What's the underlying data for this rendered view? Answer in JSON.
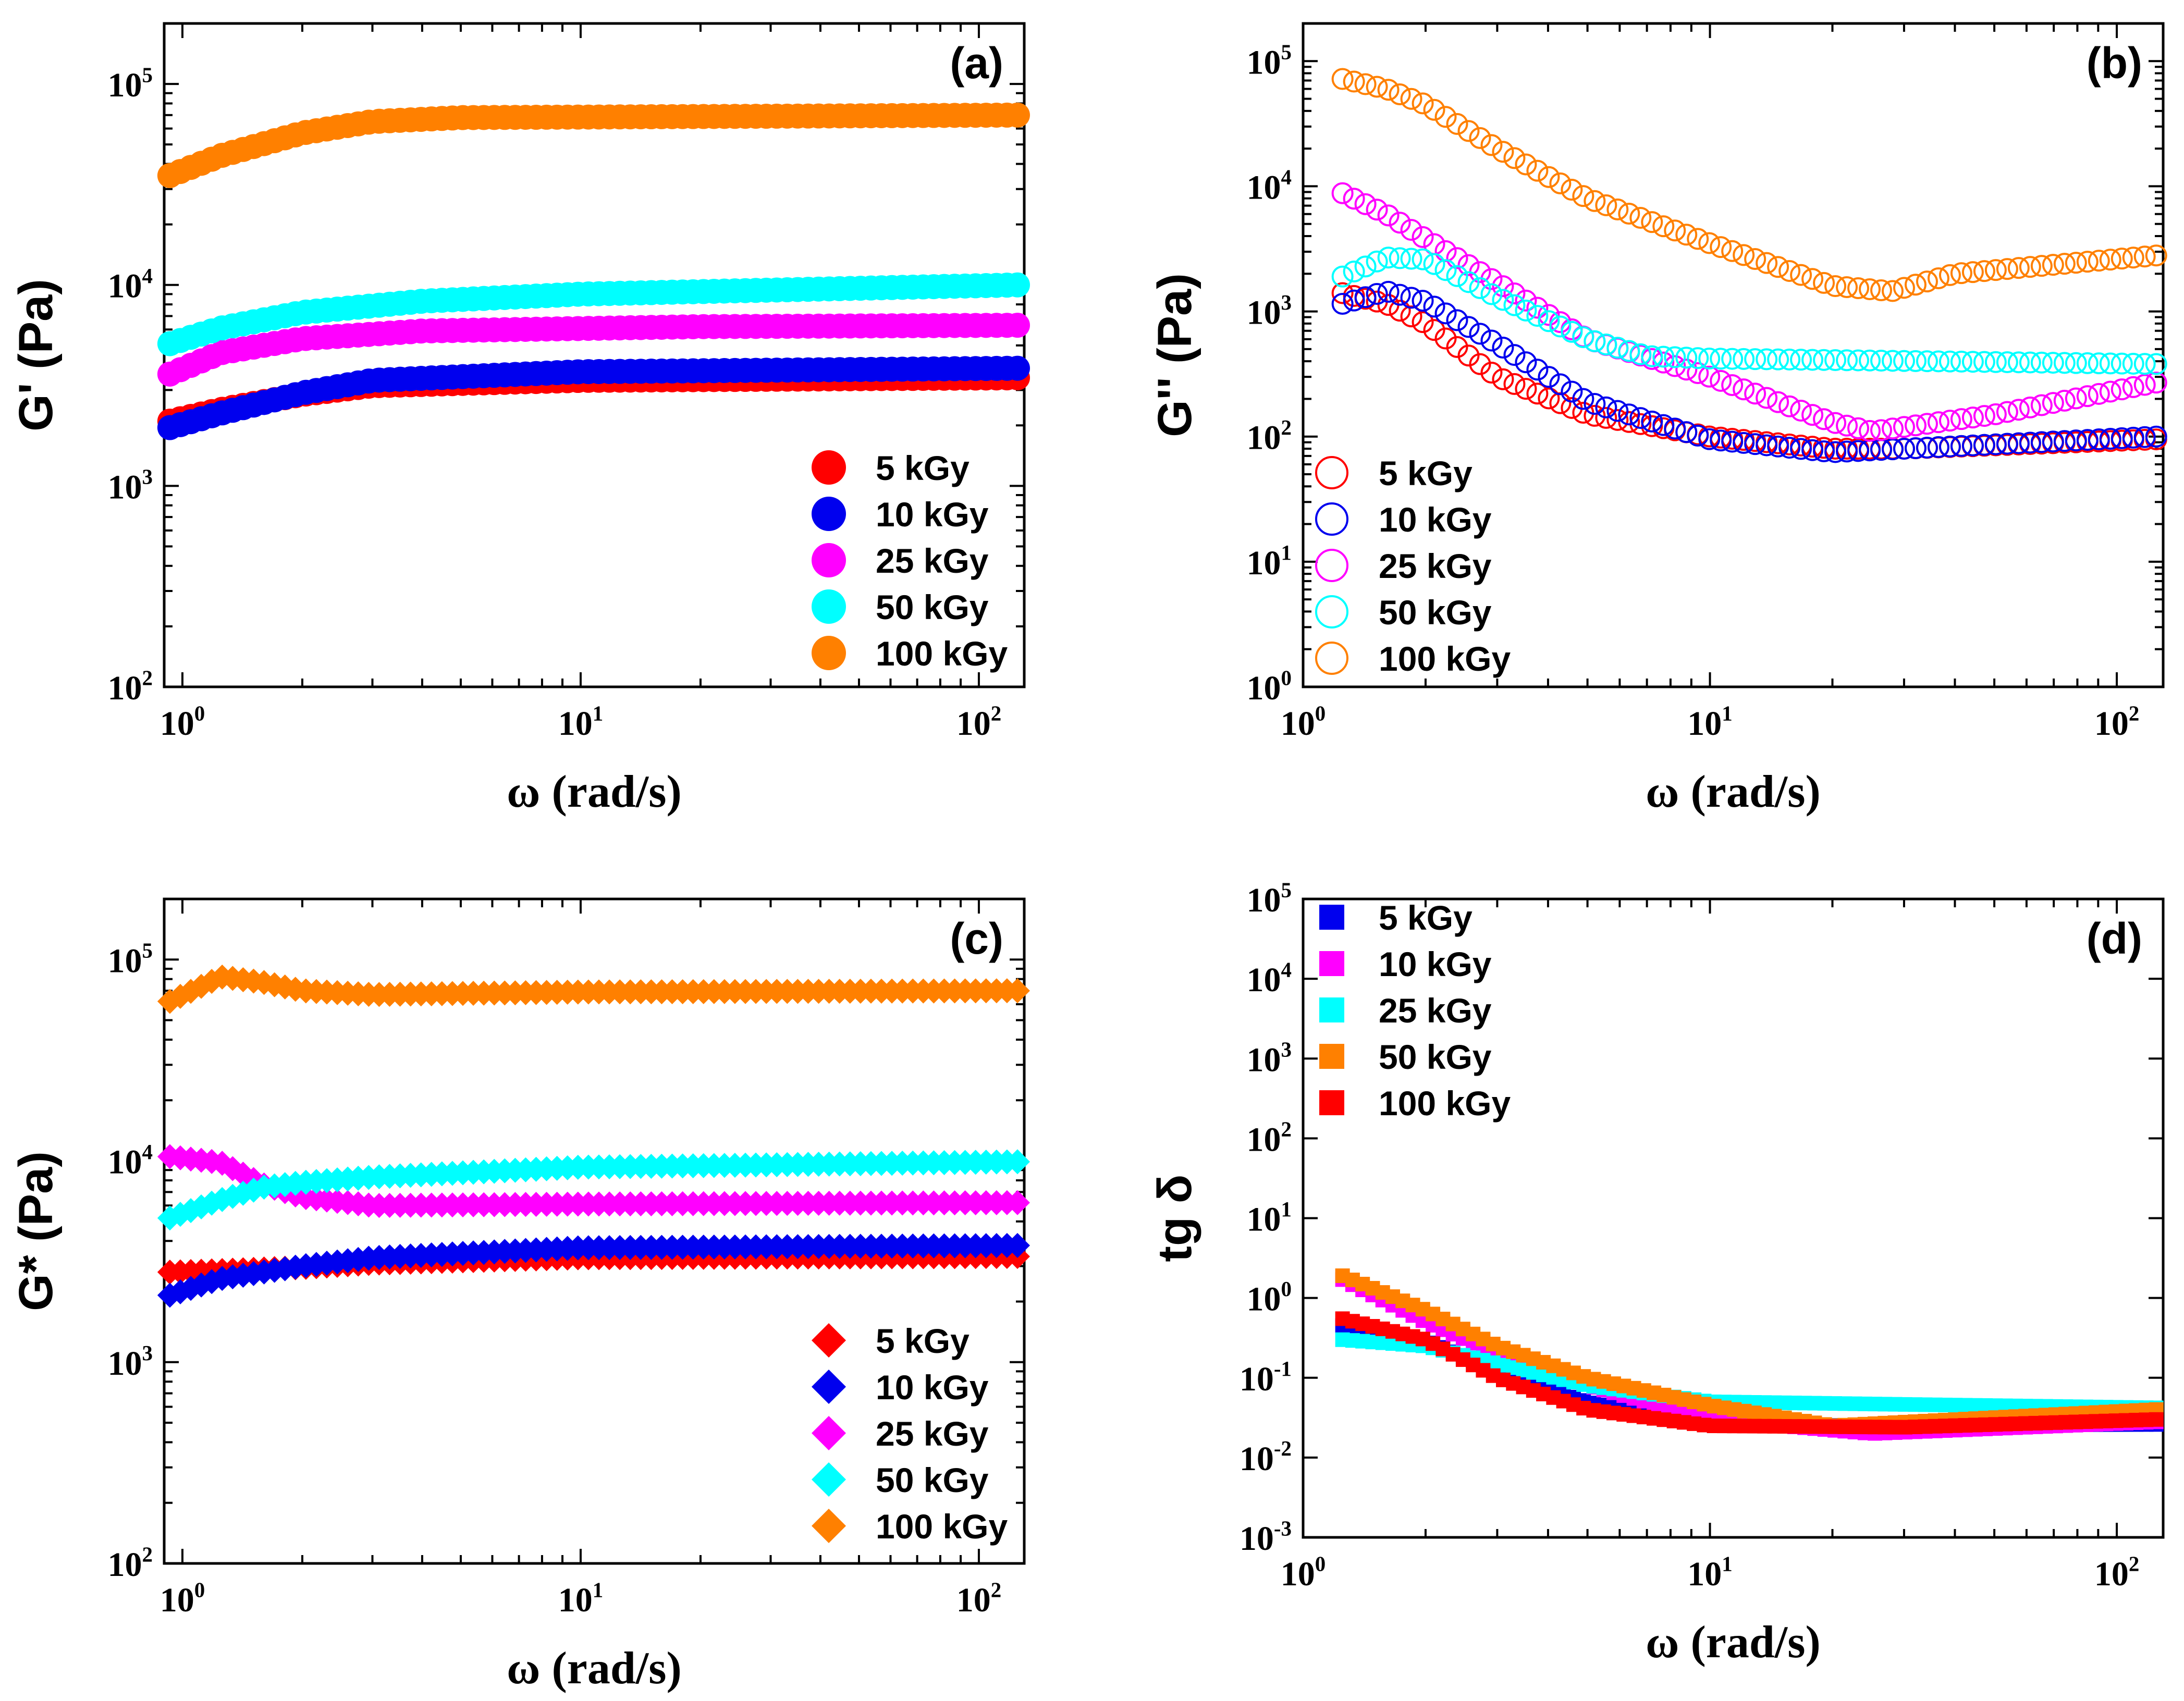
{
  "figure": {
    "colors": {
      "red": "#ff0000",
      "blue": "#0000ee",
      "magenta": "#ff00ff",
      "cyan": "#00ffff",
      "orange": "#ff8000"
    }
  },
  "chart_data": [
    {
      "id": "a",
      "type": "scatter",
      "panel_label": "(a)",
      "ylabel": "G' (Pa)",
      "xlabel": "ω (rad/s)",
      "x_scale": "log",
      "y_scale": "log",
      "xlim": [
        0.9,
        130
      ],
      "ylim": [
        100,
        200000
      ],
      "x_ticks": [
        {
          "base": "10",
          "exp": "0",
          "value": 1
        },
        {
          "base": "10",
          "exp": "1",
          "value": 10
        },
        {
          "base": "10",
          "exp": "2",
          "value": 100
        }
      ],
      "y_ticks": [
        {
          "base": "10",
          "exp": "2",
          "value": 100
        },
        {
          "base": "10",
          "exp": "3",
          "value": 1000
        },
        {
          "base": "10",
          "exp": "4",
          "value": 10000
        },
        {
          "base": "10",
          "exp": "5",
          "value": 100000
        }
      ],
      "marker": "filled-circle",
      "legend_position": "bottom-right",
      "series": [
        {
          "name": "5 kGy",
          "color": "#ff0000",
          "anchors": [
            [
              0.93,
              2100
            ],
            [
              1.25,
              2400
            ],
            [
              2,
              2850
            ],
            [
              3,
              3150
            ],
            [
              10,
              3350
            ],
            [
              125,
              3450
            ]
          ]
        },
        {
          "name": "10 kGy",
          "color": "#0000ee",
          "anchors": [
            [
              0.93,
              1950
            ],
            [
              1.25,
              2300
            ],
            [
              2,
              2900
            ],
            [
              3,
              3350
            ],
            [
              10,
              3700
            ],
            [
              125,
              3850
            ]
          ]
        },
        {
          "name": "25 kGy",
          "color": "#ff00ff",
          "anchors": [
            [
              0.93,
              3600
            ],
            [
              1.25,
              4600
            ],
            [
              2,
              5400
            ],
            [
              4,
              5900
            ],
            [
              20,
              6200
            ],
            [
              125,
              6300
            ]
          ]
        },
        {
          "name": "50 kGy",
          "color": "#00ffff",
          "anchors": [
            [
              0.93,
              5100
            ],
            [
              1.25,
              6100
            ],
            [
              2,
              7300
            ],
            [
              4,
              8300
            ],
            [
              10,
              9000
            ],
            [
              125,
              10000
            ]
          ]
        },
        {
          "name": "100 kGy",
          "color": "#ff8000",
          "anchors": [
            [
              0.93,
              35000
            ],
            [
              1.25,
              44000
            ],
            [
              2,
              57000
            ],
            [
              3,
              65000
            ],
            [
              5,
              68000
            ],
            [
              125,
              70000
            ]
          ]
        }
      ]
    },
    {
      "id": "b",
      "type": "scatter",
      "panel_label": "(b)",
      "ylabel": "G'' (Pa)",
      "xlabel": "ω (rad/s)",
      "x_scale": "log",
      "y_scale": "log",
      "xlim": [
        1,
        130
      ],
      "ylim": [
        1,
        200000
      ],
      "x_ticks": [
        {
          "base": "10",
          "exp": "0",
          "value": 1
        },
        {
          "base": "10",
          "exp": "1",
          "value": 10
        },
        {
          "base": "10",
          "exp": "2",
          "value": 100
        }
      ],
      "y_ticks": [
        {
          "base": "10",
          "exp": "0",
          "value": 1
        },
        {
          "base": "10",
          "exp": "1",
          "value": 10
        },
        {
          "base": "10",
          "exp": "2",
          "value": 100
        },
        {
          "base": "10",
          "exp": "3",
          "value": 1000
        },
        {
          "base": "10",
          "exp": "4",
          "value": 10000
        },
        {
          "base": "10",
          "exp": "5",
          "value": 100000
        }
      ],
      "marker": "open-circle",
      "legend_position": "bottom-left",
      "series": [
        {
          "name": "5 kGy",
          "color": "#ff0000",
          "anchors": [
            [
              1.25,
              1400
            ],
            [
              1.6,
              1150
            ],
            [
              2,
              800
            ],
            [
              3,
              300
            ],
            [
              5,
              150
            ],
            [
              10,
              100
            ],
            [
              20,
              80
            ],
            [
              30,
              80
            ],
            [
              125,
              95
            ]
          ]
        },
        {
          "name": "10 kGy",
          "color": "#0000ee",
          "anchors": [
            [
              1.25,
              1150
            ],
            [
              1.6,
              1450
            ],
            [
              2,
              1200
            ],
            [
              3,
              550
            ],
            [
              5,
              190
            ],
            [
              10,
              95
            ],
            [
              20,
              75
            ],
            [
              125,
              100
            ]
          ]
        },
        {
          "name": "25 kGy",
          "color": "#ff00ff",
          "anchors": [
            [
              1.25,
              8800
            ],
            [
              1.6,
              6000
            ],
            [
              2,
              3800
            ],
            [
              3,
              1700
            ],
            [
              5,
              600
            ],
            [
              10,
              300
            ],
            [
              20,
              130
            ],
            [
              25,
              110
            ],
            [
              50,
              150
            ],
            [
              125,
              270
            ]
          ]
        },
        {
          "name": "50 kGy",
          "color": "#00ffff",
          "anchors": [
            [
              1.25,
              1900
            ],
            [
              1.6,
              2700
            ],
            [
              2,
              2600
            ],
            [
              3,
              1300
            ],
            [
              5,
              600
            ],
            [
              7,
              440
            ],
            [
              10,
              420
            ],
            [
              125,
              380
            ]
          ]
        },
        {
          "name": "100 kGy",
          "color": "#ff8000",
          "anchors": [
            [
              1.25,
              72000
            ],
            [
              1.6,
              60000
            ],
            [
              2,
              45000
            ],
            [
              3,
              20000
            ],
            [
              5,
              8000
            ],
            [
              10,
              3500
            ],
            [
              20,
              1600
            ],
            [
              28,
              1450
            ],
            [
              40,
              2000
            ],
            [
              125,
              2800
            ]
          ]
        }
      ]
    },
    {
      "id": "c",
      "type": "scatter",
      "panel_label": "(c)",
      "ylabel": "G* (Pa)",
      "xlabel": "ω (rad/s)",
      "x_scale": "log",
      "y_scale": "log",
      "xlim": [
        0.9,
        130
      ],
      "ylim": [
        100,
        200000
      ],
      "x_ticks": [
        {
          "base": "10",
          "exp": "0",
          "value": 1
        },
        {
          "base": "10",
          "exp": "1",
          "value": 10
        },
        {
          "base": "10",
          "exp": "2",
          "value": 100
        }
      ],
      "y_ticks": [
        {
          "base": "10",
          "exp": "2",
          "value": 100
        },
        {
          "base": "10",
          "exp": "3",
          "value": 1000
        },
        {
          "base": "10",
          "exp": "4",
          "value": 10000
        },
        {
          "base": "10",
          "exp": "5",
          "value": 100000
        }
      ],
      "marker": "filled-diamond",
      "legend_position": "bottom-right",
      "series": [
        {
          "name": "5 kGy",
          "color": "#ff0000",
          "anchors": [
            [
              0.93,
              2800
            ],
            [
              1.25,
              2850
            ],
            [
              2,
              2950
            ],
            [
              3,
              3100
            ],
            [
              10,
              3300
            ],
            [
              125,
              3350
            ]
          ]
        },
        {
          "name": "10 kGy",
          "color": "#0000ee",
          "anchors": [
            [
              0.93,
              2150
            ],
            [
              1.25,
              2600
            ],
            [
              2,
              3000
            ],
            [
              3,
              3300
            ],
            [
              10,
              3700
            ],
            [
              125,
              3800
            ]
          ]
        },
        {
          "name": "25 kGy",
          "color": "#ff00ff",
          "anchors": [
            [
              0.93,
              10500
            ],
            [
              1.25,
              9800
            ],
            [
              1.6,
              7600
            ],
            [
              2,
              6600
            ],
            [
              3,
              6000
            ],
            [
              10,
              6100
            ],
            [
              125,
              6200
            ]
          ]
        },
        {
          "name": "50 kGy",
          "color": "#00ffff",
          "anchors": [
            [
              0.93,
              5200
            ],
            [
              1.25,
              6400
            ],
            [
              1.6,
              7400
            ],
            [
              2,
              7800
            ],
            [
              3,
              8300
            ],
            [
              10,
              9300
            ],
            [
              125,
              9900
            ]
          ]
        },
        {
          "name": "100 kGy",
          "color": "#ff8000",
          "anchors": [
            [
              0.93,
              62000
            ],
            [
              1.25,
              82000
            ],
            [
              1.6,
              77000
            ],
            [
              2,
              70000
            ],
            [
              3,
              67000
            ],
            [
              10,
              69000
            ],
            [
              125,
              70000
            ]
          ]
        }
      ]
    },
    {
      "id": "d",
      "type": "scatter",
      "panel_label": "(d)",
      "ylabel": "tg δ",
      "xlabel": "ω (rad/s)",
      "x_scale": "log",
      "y_scale": "log",
      "xlim": [
        1,
        130
      ],
      "ylim": [
        0.001,
        100000
      ],
      "x_ticks": [
        {
          "base": "10",
          "exp": "0",
          "value": 1
        },
        {
          "base": "10",
          "exp": "1",
          "value": 10
        },
        {
          "base": "10",
          "exp": "2",
          "value": 100
        }
      ],
      "y_ticks": [
        {
          "base": "10",
          "exp": "-3",
          "value": 0.001
        },
        {
          "base": "10",
          "exp": "-2",
          "value": 0.01
        },
        {
          "base": "10",
          "exp": "-1",
          "value": 0.1
        },
        {
          "base": "10",
          "exp": "0",
          "value": 1
        },
        {
          "base": "10",
          "exp": "1",
          "value": 10
        },
        {
          "base": "10",
          "exp": "2",
          "value": 100
        },
        {
          "base": "10",
          "exp": "3",
          "value": 1000
        },
        {
          "base": "10",
          "exp": "4",
          "value": 10000
        },
        {
          "base": "10",
          "exp": "5",
          "value": 100000
        }
      ],
      "marker": "filled-square",
      "legend_position": "top-left",
      "series": [
        {
          "name": "5 kGy",
          "color": "#0000ee",
          "anchors": [
            [
              1.25,
              0.45
            ],
            [
              2,
              0.3
            ],
            [
              3,
              0.12
            ],
            [
              5,
              0.05
            ],
            [
              10,
              0.025
            ],
            [
              125,
              0.026
            ]
          ]
        },
        {
          "name": "10 kGy",
          "color": "#ff00ff",
          "anchors": [
            [
              1.25,
              1.7
            ],
            [
              2,
              0.5
            ],
            [
              3,
              0.2
            ],
            [
              5,
              0.08
            ],
            [
              10,
              0.03
            ],
            [
              25,
              0.02
            ],
            [
              125,
              0.028
            ]
          ]
        },
        {
          "name": "25 kGy",
          "color": "#00ffff",
          "anchors": [
            [
              1.25,
              0.3
            ],
            [
              2,
              0.25
            ],
            [
              3,
              0.15
            ],
            [
              5,
              0.08
            ],
            [
              10,
              0.05
            ],
            [
              125,
              0.042
            ]
          ]
        },
        {
          "name": "50 kGy",
          "color": "#ff8000",
          "anchors": [
            [
              1.25,
              1.9
            ],
            [
              2,
              0.7
            ],
            [
              3,
              0.25
            ],
            [
              5,
              0.1
            ],
            [
              10,
              0.045
            ],
            [
              20,
              0.025
            ],
            [
              125,
              0.04
            ]
          ]
        },
        {
          "name": "100 kGy",
          "color": "#ff0000",
          "anchors": [
            [
              1.25,
              0.55
            ],
            [
              2,
              0.3
            ],
            [
              3,
              0.1
            ],
            [
              5,
              0.04
            ],
            [
              10,
              0.025
            ],
            [
              30,
              0.024
            ],
            [
              125,
              0.03
            ]
          ]
        }
      ]
    }
  ]
}
